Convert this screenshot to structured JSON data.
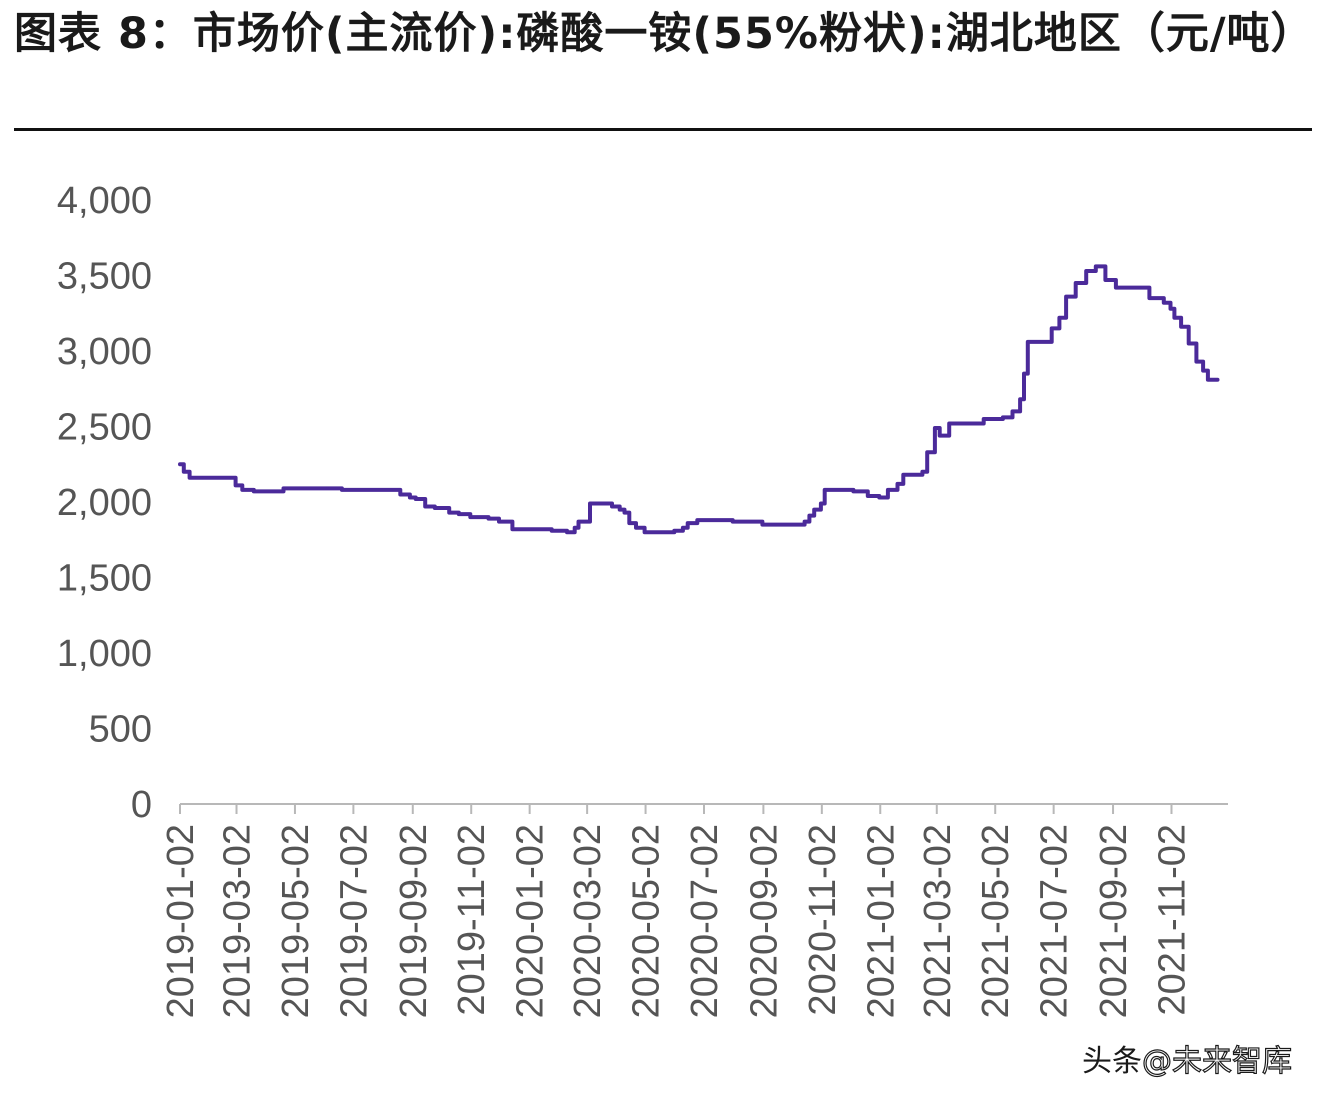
{
  "title": "图表 8：市场价(主流价):磷酸一铵(55%粉状):湖北地区（元/吨）",
  "watermark": {
    "prefix": "头条",
    "name": "@未来智库"
  },
  "colors": {
    "line": "#4b2a9a",
    "axis": "#b8b8b8",
    "tick_text": "#555555"
  },
  "chart_data": {
    "type": "line",
    "title": "",
    "xlabel": "",
    "ylabel": "",
    "ylim": [
      0,
      4000
    ],
    "yticks": [
      0,
      500,
      1000,
      1500,
      2000,
      2500,
      3000,
      3500,
      4000
    ],
    "ytick_labels": [
      "0",
      "500",
      "1,000",
      "1,500",
      "2,000",
      "2,500",
      "3,000",
      "3,500",
      "4,000"
    ],
    "xlim": [
      "2019-01-02",
      "2021-12-31"
    ],
    "xticks": [
      "2019-01-02",
      "2019-03-02",
      "2019-05-02",
      "2019-07-02",
      "2019-09-02",
      "2019-11-02",
      "2020-01-02",
      "2020-03-02",
      "2020-05-02",
      "2020-07-02",
      "2020-09-02",
      "2020-11-02",
      "2021-01-02",
      "2021-03-02",
      "2021-05-02",
      "2021-07-02",
      "2021-09-02",
      "2021-11-02"
    ],
    "grid": false,
    "series": [
      {
        "points": [
          [
            "2019-01-02",
            2250
          ],
          [
            "2019-01-06",
            2200
          ],
          [
            "2019-01-12",
            2160
          ],
          [
            "2019-01-25",
            2160
          ],
          [
            "2019-02-10",
            2160
          ],
          [
            "2019-02-24",
            2160
          ],
          [
            "2019-03-01",
            2110
          ],
          [
            "2019-03-08",
            2080
          ],
          [
            "2019-03-20",
            2070
          ],
          [
            "2019-04-10",
            2070
          ],
          [
            "2019-04-20",
            2090
          ],
          [
            "2019-05-10",
            2090
          ],
          [
            "2019-06-05",
            2090
          ],
          [
            "2019-06-20",
            2080
          ],
          [
            "2019-07-20",
            2080
          ],
          [
            "2019-08-10",
            2080
          ],
          [
            "2019-08-20",
            2050
          ],
          [
            "2019-08-30",
            2030
          ],
          [
            "2019-09-05",
            2020
          ],
          [
            "2019-09-15",
            1970
          ],
          [
            "2019-09-25",
            1960
          ],
          [
            "2019-10-10",
            1930
          ],
          [
            "2019-10-20",
            1920
          ],
          [
            "2019-11-01",
            1900
          ],
          [
            "2019-11-20",
            1890
          ],
          [
            "2019-12-01",
            1870
          ],
          [
            "2019-12-15",
            1820
          ],
          [
            "2020-01-05",
            1820
          ],
          [
            "2020-01-25",
            1810
          ],
          [
            "2020-02-10",
            1800
          ],
          [
            "2020-02-18",
            1830
          ],
          [
            "2020-02-22",
            1870
          ],
          [
            "2020-03-01",
            1870
          ],
          [
            "2020-03-05",
            1990
          ],
          [
            "2020-03-15",
            1990
          ],
          [
            "2020-03-28",
            1970
          ],
          [
            "2020-04-05",
            1950
          ],
          [
            "2020-04-10",
            1930
          ],
          [
            "2020-04-15",
            1860
          ],
          [
            "2020-04-22",
            1830
          ],
          [
            "2020-05-01",
            1800
          ],
          [
            "2020-05-20",
            1800
          ],
          [
            "2020-06-01",
            1810
          ],
          [
            "2020-06-10",
            1830
          ],
          [
            "2020-06-15",
            1860
          ],
          [
            "2020-06-25",
            1880
          ],
          [
            "2020-07-20",
            1880
          ],
          [
            "2020-08-01",
            1870
          ],
          [
            "2020-08-20",
            1870
          ],
          [
            "2020-09-01",
            1850
          ],
          [
            "2020-09-15",
            1850
          ],
          [
            "2020-10-01",
            1850
          ],
          [
            "2020-10-15",
            1870
          ],
          [
            "2020-10-20",
            1910
          ],
          [
            "2020-10-25",
            1950
          ],
          [
            "2020-11-01",
            1990
          ],
          [
            "2020-11-05",
            2080
          ],
          [
            "2020-11-20",
            2080
          ],
          [
            "2020-12-05",
            2070
          ],
          [
            "2020-12-20",
            2040
          ],
          [
            "2021-01-01",
            2030
          ],
          [
            "2021-01-10",
            2080
          ],
          [
            "2021-01-20",
            2120
          ],
          [
            "2021-01-26",
            2180
          ],
          [
            "2021-02-15",
            2200
          ],
          [
            "2021-02-20",
            2330
          ],
          [
            "2021-02-28",
            2490
          ],
          [
            "2021-03-05",
            2440
          ],
          [
            "2021-03-15",
            2520
          ],
          [
            "2021-04-05",
            2520
          ],
          [
            "2021-04-20",
            2550
          ],
          [
            "2021-05-10",
            2560
          ],
          [
            "2021-05-20",
            2600
          ],
          [
            "2021-05-28",
            2680
          ],
          [
            "2021-06-01",
            2850
          ],
          [
            "2021-06-05",
            3060
          ],
          [
            "2021-06-25",
            3060
          ],
          [
            "2021-06-30",
            3150
          ],
          [
            "2021-07-08",
            3220
          ],
          [
            "2021-07-15",
            3360
          ],
          [
            "2021-07-25",
            3450
          ],
          [
            "2021-08-05",
            3530
          ],
          [
            "2021-08-15",
            3560
          ],
          [
            "2021-08-25",
            3470
          ],
          [
            "2021-09-05",
            3420
          ],
          [
            "2021-09-30",
            3420
          ],
          [
            "2021-10-10",
            3350
          ],
          [
            "2021-10-25",
            3320
          ],
          [
            "2021-11-01",
            3280
          ],
          [
            "2021-11-05",
            3220
          ],
          [
            "2021-11-12",
            3160
          ],
          [
            "2021-11-20",
            3050
          ],
          [
            "2021-11-28",
            2930
          ],
          [
            "2021-12-05",
            2870
          ],
          [
            "2021-12-10",
            2810
          ],
          [
            "2021-12-20",
            2810
          ]
        ]
      }
    ]
  }
}
